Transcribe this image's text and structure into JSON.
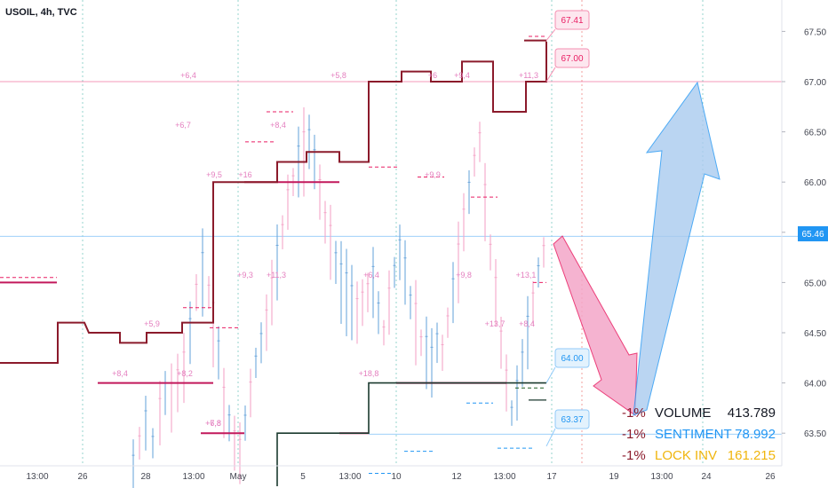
{
  "header": {
    "title": "USOIL, 4h, TVC"
  },
  "chart_data": {
    "type": "candlestick",
    "y_axis": {
      "ticks": [
        "67.50",
        "67.00",
        "66.50",
        "66.00",
        "65.50",
        "65.00",
        "64.50",
        "64.00",
        "63.50"
      ],
      "range": [
        63.2,
        67.9
      ],
      "current_price": "65.46"
    },
    "x_axis": {
      "ticks": [
        "13:00",
        "26",
        "28",
        "13:00",
        "May",
        "5",
        "13:00",
        "10",
        "12",
        "13:00",
        "17",
        "19",
        "13:00",
        "24",
        "26"
      ]
    },
    "callouts": [
      {
        "label": "67.41",
        "price": 67.41,
        "color": "#e91e63"
      },
      {
        "label": "67.00",
        "price": 67.0,
        "color": "#e91e63"
      },
      {
        "label": "64.00",
        "price": 64.0,
        "color": "#2196f3"
      },
      {
        "label": "63.37",
        "price": 63.37,
        "color": "#2196f3"
      }
    ],
    "percent_labels": [
      "+6,4",
      "+5,8",
      "+6",
      "+9,4",
      "+11,3",
      "+6,7",
      "+8,4",
      "+9,5",
      "+16",
      "+9,9",
      "+9,3",
      "+11,3",
      "+6,4",
      "+9,8",
      "+13,1",
      "+5,9",
      "+13,7",
      "+8,4",
      "+8,4",
      "+8,2",
      "+18,8",
      "+7,8",
      "+6,8"
    ],
    "overlay": [
      {
        "pct": "-1%",
        "label": "VOLUME",
        "value": "413.789",
        "label_color": "#131722"
      },
      {
        "pct": "-1%",
        "label": "SENTIMENT",
        "value": "78.992",
        "label_color": "#2196f3"
      },
      {
        "pct": "-1%",
        "label": "LOCK INV",
        "value": "161.215",
        "label_color": "#f0b50c"
      }
    ],
    "overlay_pct_color": "#8b1a2b",
    "colors": {
      "step_line": "#8b1a2b",
      "candle_up": "#6fa8dc",
      "candle_down": "#f4a6c8",
      "arrow_down": "#f4a6c8",
      "arrow_up": "#a9cbef",
      "magenta_level": "#c2185b",
      "dark_green": "#1b3a2f"
    }
  }
}
